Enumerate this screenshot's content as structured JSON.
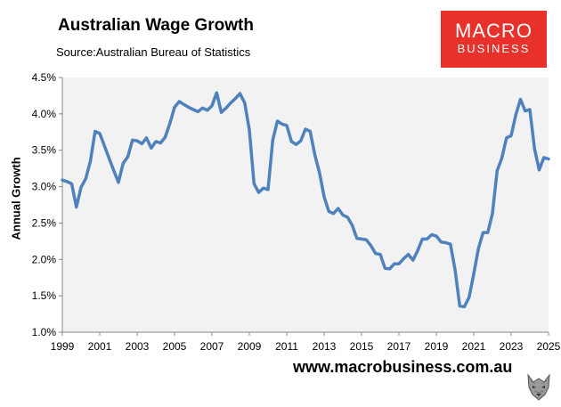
{
  "header": {
    "title": "Australian Wage Growth",
    "subtitle": "Source:Australian Bureau of Statistics"
  },
  "logo": {
    "line1": "MACRO",
    "line2": "BUSINESS",
    "color": "#e8312a"
  },
  "footer": {
    "url": "www.macrobusiness.com.au"
  },
  "chart_data": {
    "type": "line",
    "title": "Australian Wage Growth",
    "ylabel": "Annual Growth",
    "xlabel": "",
    "xlim": [
      1999,
      2025
    ],
    "ylim": [
      1.0,
      4.5
    ],
    "x_ticks": [
      "1999",
      "2001",
      "2003",
      "2005",
      "2007",
      "2009",
      "2011",
      "2013",
      "2015",
      "2017",
      "2019",
      "2021",
      "2023",
      "2025"
    ],
    "y_ticks": [
      "1.0%",
      "1.5%",
      "2.0%",
      "2.5%",
      "3.0%",
      "3.5%",
      "4.0%",
      "4.5%"
    ],
    "grid": false,
    "plot_background": "#f2f2f2",
    "line_color": "#4f81bd",
    "series": [
      {
        "x": [
          1999.0,
          1999.25,
          1999.5,
          1999.75,
          2000.0,
          2000.25,
          2000.5,
          2000.75,
          2001.0,
          2001.25,
          2001.5,
          2001.75,
          2002.0,
          2002.25,
          2002.5,
          2002.75,
          2003.0,
          2003.25,
          2003.5,
          2003.75,
          2004.0,
          2004.25,
          2004.5,
          2004.75,
          2005.0,
          2005.25,
          2005.5,
          2005.75,
          2006.0,
          2006.25,
          2006.5,
          2006.75,
          2007.0,
          2007.25,
          2007.5,
          2007.75,
          2008.0,
          2008.25,
          2008.5,
          2008.75,
          2009.0,
          2009.25,
          2009.5,
          2009.75,
          2010.0,
          2010.25,
          2010.5,
          2010.75,
          2011.0,
          2011.25,
          2011.5,
          2011.75,
          2012.0,
          2012.25,
          2012.5,
          2012.75,
          2013.0,
          2013.25,
          2013.5,
          2013.75,
          2014.0,
          2014.25,
          2014.5,
          2014.75,
          2015.0,
          2015.25,
          2015.5,
          2015.75,
          2016.0,
          2016.25,
          2016.5,
          2016.75,
          2017.0,
          2017.25,
          2017.5,
          2017.75,
          2018.0,
          2018.25,
          2018.5,
          2018.75,
          2019.0,
          2019.25,
          2019.5,
          2019.75,
          2020.0,
          2020.25,
          2020.5,
          2020.75,
          2021.0,
          2021.25,
          2021.5,
          2021.75,
          2022.0,
          2022.25,
          2022.5,
          2022.75,
          2023.0,
          2023.25,
          2023.5,
          2023.75,
          2024.0,
          2024.25,
          2024.5,
          2024.75,
          2025.0
        ],
        "values": [
          3.09,
          3.07,
          3.04,
          2.72,
          2.99,
          3.11,
          3.35,
          3.76,
          3.73,
          3.56,
          3.39,
          3.22,
          3.06,
          3.32,
          3.41,
          3.64,
          3.63,
          3.59,
          3.67,
          3.53,
          3.62,
          3.6,
          3.68,
          3.87,
          4.09,
          4.17,
          4.13,
          4.09,
          4.06,
          4.03,
          4.08,
          4.05,
          4.11,
          4.29,
          4.02,
          4.08,
          4.15,
          4.21,
          4.28,
          4.15,
          3.78,
          3.04,
          2.92,
          2.98,
          2.96,
          3.64,
          3.9,
          3.86,
          3.84,
          3.62,
          3.58,
          3.63,
          3.79,
          3.76,
          3.44,
          3.19,
          2.86,
          2.66,
          2.63,
          2.7,
          2.61,
          2.58,
          2.47,
          2.29,
          2.28,
          2.27,
          2.19,
          2.08,
          2.07,
          1.88,
          1.87,
          1.94,
          1.94,
          2.01,
          2.07,
          1.99,
          2.12,
          2.28,
          2.28,
          2.34,
          2.32,
          2.24,
          2.23,
          2.21,
          1.86,
          1.36,
          1.35,
          1.48,
          1.8,
          2.15,
          2.37,
          2.37,
          2.63,
          3.22,
          3.39,
          3.67,
          3.7,
          3.99,
          4.2,
          4.04,
          4.06,
          3.52,
          3.23,
          3.4,
          3.38
        ]
      }
    ]
  }
}
